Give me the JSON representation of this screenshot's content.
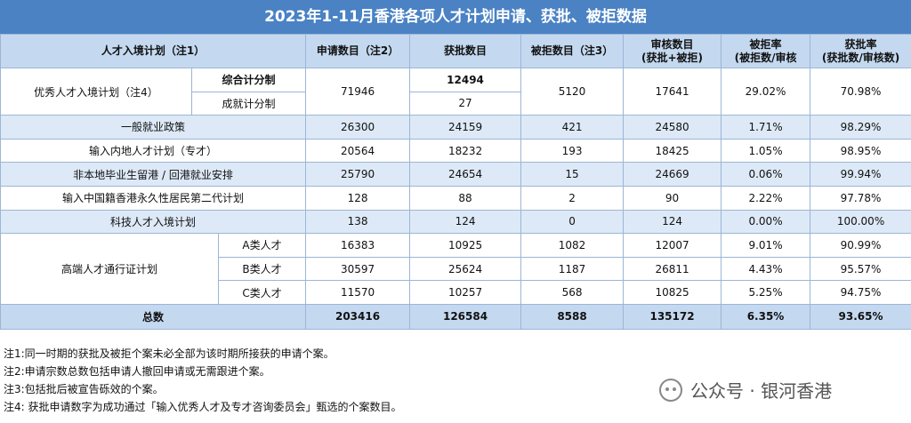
{
  "title": "2023年1-11月香港各项人才计划申请、获批、被拒数据",
  "table": {
    "header": [
      [
        "人才入境计划（注1）"
      ],
      [
        "申请数目（注2）"
      ],
      [
        "获批数目"
      ],
      [
        "被拒数目（注3）"
      ],
      [
        "审核数目",
        "(获批+被拒)"
      ],
      [
        "被拒率",
        "(被拒数/审核"
      ],
      [
        "获批率",
        "(获批数/审核数)"
      ]
    ],
    "rows": [
      [
        "优秀人才入境计划（注4）",
        "综合计分制",
        71946,
        12494,
        5120,
        17641,
        "29.02%",
        "70.98%"
      ],
      [
        "成就计分制",
        27
      ],
      [
        "一般就业政策",
        26300,
        24159,
        421,
        24580,
        "1.71%",
        "98.29%"
      ],
      [
        "输入内地人才计划（专才）",
        20564,
        18232,
        193,
        18425,
        "1.05%",
        "98.95%"
      ],
      [
        "非本地毕业生留港 / 回港就业安排",
        25790,
        24654,
        15,
        24669,
        "0.06%",
        "99.94%"
      ],
      [
        "输入中国籍香港永久性居民第二代计划",
        128,
        88,
        2,
        90,
        "2.22%",
        "97.78%"
      ],
      [
        "科技人才入境计划",
        138,
        124,
        0,
        124,
        "0.00%",
        "100.00%"
      ],
      [
        "高端人才通行证计划",
        "A类人才",
        16383,
        10925,
        1082,
        12007,
        "9.01%",
        "90.99%"
      ],
      [
        "B类人才",
        30597,
        25624,
        1187,
        26811,
        "4.43%",
        "95.57%"
      ],
      [
        "C类人才",
        11570,
        10257,
        568,
        10825,
        "5.25%",
        "94.75%"
      ],
      [
        "总数",
        203416,
        126584,
        8588,
        135172,
        "6.35%",
        "93.65%"
      ]
    ]
  },
  "notes": [
    "注1:同一时期的获批及被拒个案未必全部为该时期所接获的申请个案。",
    "注2:申请宗数总数包括申请人撤回申请或无需跟进个案。",
    "注3:包括批后被宣告砾效的个案。",
    "注4: 获批申请数字为成功通过「输入优秀人才及专才咨询委员会」甄选的个案数目。"
  ],
  "watermark": "公众号 · 银河香港"
}
